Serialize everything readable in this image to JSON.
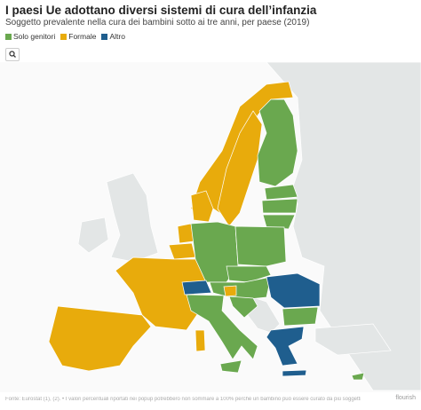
{
  "header": {
    "title": "I paesi Ue adottano diversi sistemi di cura dell’infanzia",
    "subtitle": "Soggetto prevalente nella cura dei bambini sotto ai tre anni, per paese (2019)"
  },
  "legend": [
    {
      "label": "Solo genitori",
      "color": "#6aa84f"
    },
    {
      "label": "Formale",
      "color": "#e8ab0c"
    },
    {
      "label": "Altro",
      "color": "#1f5e8e"
    }
  ],
  "footer": {
    "source": "Fonte: Eurostat (1), (2). • I valori percentuali riportati nei popup potrebbero non sommare a 100% perché un bambino può essere curato da più soggetti",
    "logo": "flourish"
  }
}
